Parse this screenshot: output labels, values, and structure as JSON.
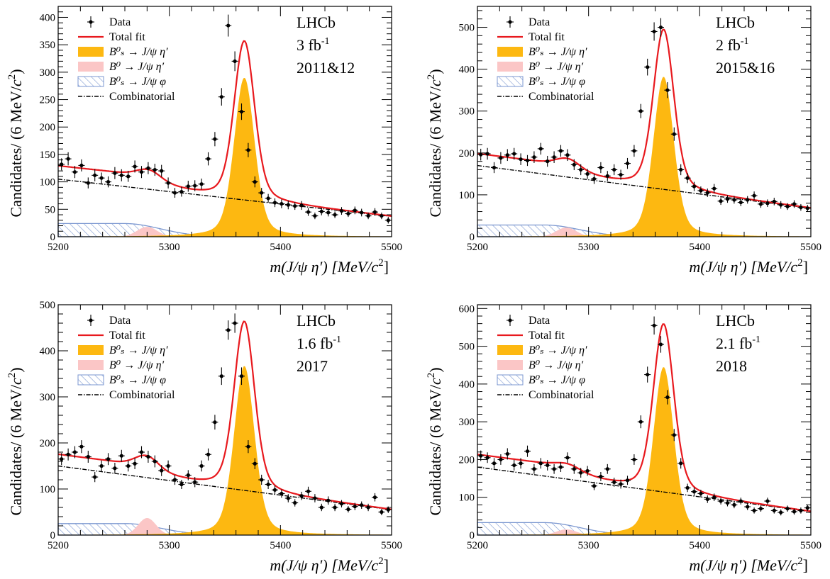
{
  "chart_data": [
    {
      "type": "scatter",
      "experiment": "LHCb",
      "lumi": "3 fb",
      "lumi_exp": "-1",
      "period": "2011&12",
      "ylabel_main": "Candidates/ (6 MeV/",
      "ylabel_c": "c",
      "ylabel_exp": "2",
      "ylabel_close": ")",
      "xlabel_main": "m(J/ψ η′) [MeV/",
      "xlabel_c": "c",
      "xlabel_exp": "2",
      "xlabel_close": "]",
      "xlim": [
        5200,
        5500
      ],
      "ylim": [
        0,
        420
      ],
      "xticks": [
        5200,
        5300,
        5400,
        5500
      ],
      "yticks": [
        0,
        50,
        100,
        150,
        200,
        250,
        300,
        350,
        400
      ],
      "legend": {
        "placement": "top-left",
        "entries": [
          "Data",
          "Total fit",
          "B⁰ₛ → J/ψ η′",
          "B⁰ → J/ψ η′",
          "B⁰ₛ → J/ψ φ",
          "Combinatorial"
        ]
      },
      "model": {
        "comb_a": 105,
        "comb_b": 37,
        "bs_amp": 290,
        "bs_mu": 5367.5,
        "bs_sigma": 9,
        "b0_amp": 18,
        "b0_mu": 5280,
        "b0_sigma": 9,
        "phi_amp": 24,
        "phi_mu": 5260,
        "phi_sigma": 45,
        "bump_amp": 15,
        "bump_mu": 5282,
        "bump_sigma": 10
      },
      "data_x": [
        5203,
        5209,
        5215,
        5221,
        5227,
        5233,
        5239,
        5245,
        5251,
        5257,
        5263,
        5269,
        5275,
        5281,
        5287,
        5293,
        5299,
        5305,
        5311,
        5317,
        5323,
        5329,
        5335,
        5341,
        5347,
        5353,
        5359,
        5365,
        5371,
        5377,
        5383,
        5389,
        5395,
        5401,
        5407,
        5413,
        5419,
        5425,
        5431,
        5437,
        5443,
        5449,
        5455,
        5461,
        5467,
        5473,
        5479,
        5485,
        5491,
        5497
      ],
      "data_y": [
        132,
        142,
        118,
        130,
        98,
        112,
        107,
        100,
        116,
        112,
        110,
        128,
        118,
        125,
        122,
        120,
        98,
        80,
        82,
        92,
        93,
        96,
        142,
        178,
        255,
        385,
        320,
        228,
        158,
        100,
        80,
        70,
        62,
        60,
        58,
        56,
        57,
        45,
        38,
        46,
        44,
        40,
        47,
        42,
        48,
        44,
        38,
        45,
        38,
        30
      ],
      "data_err": [
        11,
        12,
        11,
        11,
        10,
        11,
        10,
        10,
        11,
        11,
        10,
        11,
        11,
        11,
        11,
        11,
        10,
        9,
        9,
        10,
        10,
        10,
        12,
        13,
        16,
        20,
        18,
        15,
        13,
        10,
        9,
        8,
        8,
        8,
        8,
        7,
        8,
        7,
        6,
        7,
        7,
        6,
        7,
        6,
        7,
        7,
        6,
        7,
        6,
        6
      ]
    },
    {
      "type": "scatter",
      "experiment": "LHCb",
      "lumi": "2 fb",
      "lumi_exp": "-1",
      "period": "2015&16",
      "ylabel_main": "Candidates/ (6 MeV/",
      "ylabel_c": "c",
      "ylabel_exp": "2",
      "ylabel_close": ")",
      "xlabel_main": "m(J/ψ η′) [MeV/",
      "xlabel_c": "c",
      "xlabel_exp": "2",
      "xlabel_close": "]",
      "xlim": [
        5200,
        5500
      ],
      "ylim": [
        0,
        550
      ],
      "xticks": [
        5200,
        5300,
        5400,
        5500
      ],
      "yticks": [
        0,
        100,
        200,
        300,
        400,
        500
      ],
      "legend": {
        "placement": "top-left",
        "entries": [
          "Data",
          "Total fit",
          "B⁰ₛ → J/ψ η′",
          "B⁰ → J/ψ η′",
          "B⁰ₛ → J/ψ φ",
          "Combinatorial"
        ]
      },
      "model": {
        "comb_a": 170,
        "comb_b": 68,
        "bs_amp": 382,
        "bs_mu": 5367.5,
        "bs_sigma": 9,
        "b0_amp": 22,
        "b0_mu": 5280,
        "b0_sigma": 9,
        "phi_amp": 28,
        "phi_mu": 5260,
        "phi_sigma": 45,
        "bump_amp": 20,
        "bump_mu": 5282,
        "bump_sigma": 10
      },
      "data_x": [
        5203,
        5209,
        5215,
        5221,
        5227,
        5233,
        5239,
        5245,
        5251,
        5257,
        5263,
        5269,
        5275,
        5281,
        5287,
        5293,
        5299,
        5305,
        5311,
        5317,
        5323,
        5329,
        5335,
        5341,
        5347,
        5353,
        5359,
        5365,
        5371,
        5377,
        5383,
        5389,
        5395,
        5401,
        5407,
        5413,
        5419,
        5425,
        5431,
        5437,
        5443,
        5449,
        5455,
        5461,
        5467,
        5473,
        5479,
        5485,
        5491,
        5497
      ],
      "data_y": [
        196,
        198,
        165,
        188,
        195,
        198,
        185,
        182,
        190,
        210,
        180,
        190,
        205,
        195,
        172,
        160,
        150,
        138,
        165,
        145,
        160,
        148,
        175,
        205,
        300,
        405,
        490,
        500,
        350,
        245,
        160,
        140,
        120,
        110,
        105,
        115,
        85,
        90,
        88,
        82,
        88,
        98,
        78,
        80,
        84,
        76,
        72,
        78,
        70,
        68
      ],
      "data_err": [
        14,
        14,
        13,
        14,
        14,
        14,
        14,
        13,
        14,
        14,
        13,
        14,
        14,
        14,
        13,
        13,
        12,
        12,
        13,
        12,
        13,
        12,
        13,
        14,
        17,
        20,
        22,
        22,
        19,
        16,
        13,
        12,
        11,
        10,
        10,
        11,
        9,
        9,
        9,
        9,
        9,
        10,
        9,
        9,
        9,
        9,
        8,
        9,
        8,
        8
      ]
    },
    {
      "type": "scatter",
      "experiment": "LHCb",
      "lumi": "1.6 fb",
      "lumi_exp": "-1",
      "period": "2017",
      "ylabel_main": "Candidates/ (6 MeV/",
      "ylabel_c": "c",
      "ylabel_exp": "2",
      "ylabel_close": ")",
      "xlabel_main": "m(J/ψ η′) [MeV/",
      "xlabel_c": "c",
      "xlabel_exp": "2",
      "xlabel_close": "]",
      "xlim": [
        5200,
        5500
      ],
      "ylim": [
        0,
        500
      ],
      "xticks": [
        5200,
        5300,
        5400,
        5500
      ],
      "yticks": [
        0,
        100,
        200,
        300,
        400,
        500
      ],
      "legend": {
        "placement": "top-left",
        "entries": [
          "Data",
          "Total fit",
          "B⁰ₛ → J/ψ η′",
          "B⁰ → J/ψ η′",
          "B⁰ₛ → J/ψ φ",
          "Combinatorial"
        ]
      },
      "model": {
        "comb_a": 150,
        "comb_b": 55,
        "bs_amp": 367,
        "bs_mu": 5367.5,
        "bs_sigma": 9,
        "b0_amp": 37,
        "b0_mu": 5280,
        "b0_sigma": 8,
        "phi_amp": 25,
        "phi_mu": 5260,
        "phi_sigma": 45,
        "bump_amp": 25,
        "bump_mu": 5280,
        "bump_sigma": 10
      },
      "data_x": [
        5203,
        5209,
        5215,
        5221,
        5227,
        5233,
        5239,
        5245,
        5251,
        5257,
        5263,
        5269,
        5275,
        5281,
        5287,
        5293,
        5299,
        5305,
        5311,
        5317,
        5323,
        5329,
        5335,
        5341,
        5347,
        5353,
        5359,
        5365,
        5371,
        5377,
        5383,
        5389,
        5395,
        5401,
        5407,
        5413,
        5419,
        5425,
        5431,
        5437,
        5443,
        5449,
        5455,
        5461,
        5467,
        5473,
        5479,
        5485,
        5491,
        5497
      ],
      "data_y": [
        165,
        175,
        180,
        192,
        170,
        126,
        150,
        165,
        145,
        172,
        150,
        155,
        180,
        170,
        160,
        140,
        150,
        120,
        110,
        130,
        115,
        150,
        175,
        245,
        345,
        445,
        460,
        345,
        192,
        155,
        120,
        110,
        98,
        90,
        80,
        70,
        85,
        95,
        80,
        60,
        75,
        60,
        68,
        56,
        62,
        65,
        60,
        82,
        50,
        55
      ],
      "data_err": [
        13,
        13,
        13,
        14,
        13,
        11,
        12,
        13,
        12,
        13,
        12,
        12,
        13,
        13,
        13,
        12,
        12,
        11,
        10,
        11,
        11,
        12,
        13,
        16,
        19,
        21,
        21,
        19,
        14,
        12,
        11,
        10,
        10,
        9,
        9,
        8,
        9,
        10,
        9,
        8,
        9,
        8,
        8,
        7,
        8,
        8,
        8,
        9,
        7,
        7
      ]
    },
    {
      "type": "scatter",
      "experiment": "LHCb",
      "lumi": "2.1 fb",
      "lumi_exp": "-1",
      "period": "2018",
      "ylabel_main": "Candidates/ (6 MeV/",
      "ylabel_c": "c",
      "ylabel_exp": "2",
      "ylabel_close": ")",
      "xlabel_main": "m(J/ψ η′) [MeV/",
      "xlabel_c": "c",
      "xlabel_exp": "2",
      "xlabel_close": "]",
      "xlim": [
        5200,
        5500
      ],
      "ylim": [
        0,
        610
      ],
      "xticks": [
        5200,
        5300,
        5400,
        5500
      ],
      "yticks": [
        0,
        100,
        200,
        300,
        400,
        500,
        600
      ],
      "legend": {
        "placement": "top-left",
        "entries": [
          "Data",
          "Total fit",
          "B⁰ₛ → J/ψ η′",
          "B⁰ → J/ψ η′",
          "B⁰ₛ → J/ψ φ",
          "Combinatorial"
        ]
      },
      "model": {
        "comb_a": 180,
        "comb_b": 62,
        "bs_amp": 445,
        "bs_mu": 5367.5,
        "bs_sigma": 9,
        "b0_amp": 15,
        "b0_mu": 5280,
        "b0_sigma": 9,
        "phi_amp": 33,
        "phi_mu": 5260,
        "phi_sigma": 45,
        "bump_amp": 12,
        "bump_mu": 5282,
        "bump_sigma": 10
      },
      "data_x": [
        5203,
        5209,
        5215,
        5221,
        5227,
        5233,
        5239,
        5245,
        5251,
        5257,
        5263,
        5269,
        5275,
        5281,
        5287,
        5293,
        5299,
        5305,
        5311,
        5317,
        5323,
        5329,
        5335,
        5341,
        5347,
        5353,
        5359,
        5365,
        5371,
        5377,
        5383,
        5389,
        5395,
        5401,
        5407,
        5413,
        5419,
        5425,
        5431,
        5437,
        5443,
        5449,
        5455,
        5461,
        5467,
        5473,
        5479,
        5485,
        5491,
        5497
      ],
      "data_y": [
        210,
        205,
        190,
        200,
        215,
        185,
        190,
        222,
        175,
        190,
        185,
        175,
        180,
        205,
        175,
        165,
        170,
        130,
        155,
        175,
        140,
        135,
        145,
        200,
        300,
        425,
        555,
        505,
        365,
        265,
        190,
        125,
        115,
        110,
        95,
        100,
        90,
        85,
        80,
        90,
        75,
        65,
        70,
        90,
        65,
        60,
        70,
        62,
        65,
        72
      ],
      "data_err": [
        14,
        14,
        14,
        14,
        15,
        14,
        14,
        15,
        13,
        14,
        14,
        13,
        13,
        14,
        13,
        13,
        13,
        11,
        12,
        13,
        12,
        12,
        12,
        14,
        17,
        21,
        24,
        22,
        19,
        16,
        14,
        11,
        11,
        10,
        10,
        10,
        9,
        9,
        9,
        9,
        9,
        8,
        8,
        9,
        8,
        8,
        8,
        8,
        8,
        8
      ]
    }
  ]
}
